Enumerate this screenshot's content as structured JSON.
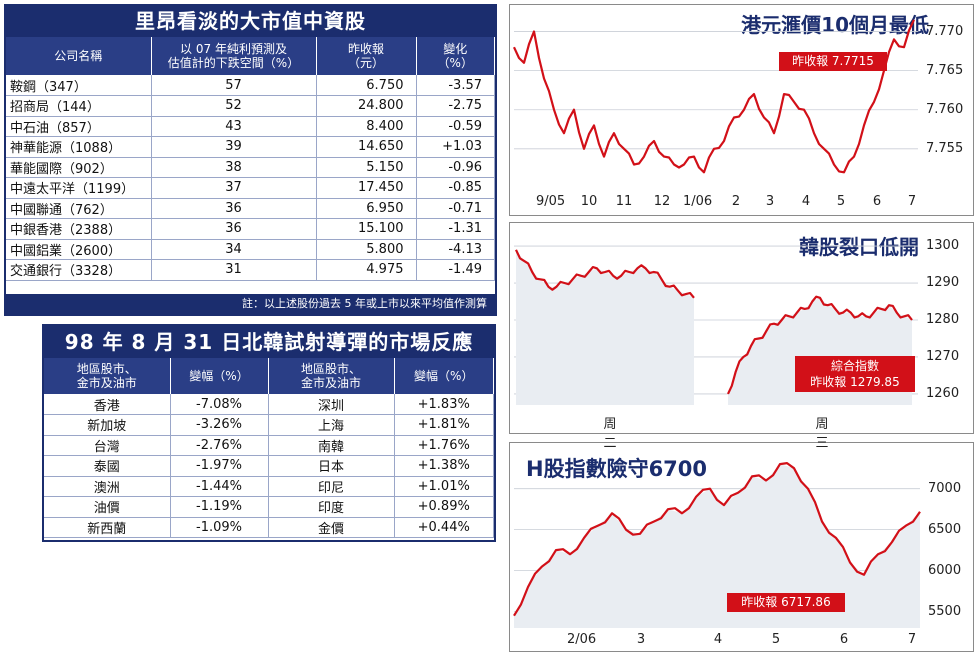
{
  "table1": {
    "title": "里昂看淡的大市值中資股",
    "headers": [
      "公司名稱",
      "以 07 年純利預測及估值計的下跌空間（%）",
      "昨收報（元）",
      "變化（%）"
    ],
    "header_lines": [
      [
        "公司名稱"
      ],
      [
        "以 07 年純利預測及",
        "估值計的下跌空間（%）"
      ],
      [
        "昨收報",
        "（元）"
      ],
      [
        "變化",
        "（%）"
      ]
    ],
    "rows": [
      [
        "鞍鋼（347）",
        "57",
        "6.750",
        "-3.57"
      ],
      [
        "招商局（144）",
        "52",
        "24.800",
        "-2.75"
      ],
      [
        "中石油（857）",
        "43",
        "8.400",
        "-0.59"
      ],
      [
        "神華能源（1088）",
        "39",
        "14.650",
        "+1.03"
      ],
      [
        "華能國際（902）",
        "38",
        "5.150",
        "-0.96"
      ],
      [
        "中遠太平洋（1199）",
        "37",
        "17.450",
        "-0.85"
      ],
      [
        "中國聯通（762）",
        "36",
        "6.950",
        "-0.71"
      ],
      [
        "中銀香港（2388）",
        "36",
        "15.100",
        "-1.31"
      ],
      [
        "中國鋁業（2600）",
        "34",
        "5.800",
        "-4.13"
      ],
      [
        "交通銀行（3328）",
        "31",
        "4.975",
        "-1.49"
      ]
    ],
    "note": "註：以上述股份過去 5 年或上市以來平均值作測算"
  },
  "table2": {
    "title": "98 年 8 月 31 日北韓試射導彈的市場反應",
    "header_lines": [
      [
        "地區股市、",
        "金市及油市"
      ],
      [
        "變幅（%）"
      ],
      [
        "地區股市、",
        "金市及油市"
      ],
      [
        "變幅（%）"
      ]
    ],
    "rows": [
      [
        "香港",
        "-7.08%",
        "深圳",
        "+1.83%"
      ],
      [
        "新加坡",
        "-3.26%",
        "上海",
        "+1.81%"
      ],
      [
        "台灣",
        "-2.76%",
        "南韓",
        "+1.76%"
      ],
      [
        "泰國",
        "-1.97%",
        "日本",
        "+1.38%"
      ],
      [
        "澳洲",
        "-1.44%",
        "印尼",
        "+1.01%"
      ],
      [
        "油價",
        "-1.19%",
        "印度",
        "+0.89%"
      ],
      [
        "新西蘭",
        "-1.09%",
        "金價",
        "+0.44%"
      ]
    ]
  },
  "colors": {
    "navy": "#1b2d6e",
    "line": "#d21018",
    "fill": "#e9edf2"
  },
  "chart_data": [
    {
      "type": "line",
      "title": "港元滙價10個月最低",
      "annotation": "昨收報 7.7715",
      "x_ticks": [
        "9/05",
        "10",
        "11",
        "12",
        "1/06",
        "2",
        "3",
        "4",
        "5",
        "6",
        "7"
      ],
      "y_ticks": [
        "7.770",
        "7.765",
        "7.760",
        "7.755"
      ],
      "ylim": [
        7.7505,
        7.7725
      ],
      "series": [
        {
          "values": [
            7.768,
            7.766,
            7.77,
            7.764,
            7.76,
            7.757,
            7.76,
            7.755,
            7.758,
            7.754,
            7.757,
            7.755,
            7.753,
            7.754,
            7.756,
            7.754,
            7.753,
            7.753,
            7.754,
            7.752,
            7.755,
            7.756,
            7.759,
            7.76,
            7.762,
            7.759,
            7.757,
            7.762,
            7.761,
            7.76,
            7.757,
            7.755,
            7.753,
            7.752,
            7.754,
            7.758,
            7.761,
            7.765,
            7.769,
            7.768,
            7.7715
          ]
        }
      ]
    },
    {
      "type": "line",
      "title": "韓股裂口低開",
      "annotation": "綜合指數 昨收報 1279.85",
      "x_ticks": [
        "周 二",
        "周 三"
      ],
      "y_ticks": [
        "1300",
        "1290",
        "1280",
        "1270",
        "1260"
      ],
      "ylim": [
        1257,
        1303
      ],
      "series": [
        {
          "name": "周二",
          "values": [
            1299,
            1296,
            1293,
            1291,
            1289,
            1289,
            1290,
            1291,
            1292,
            1293,
            1294,
            1293,
            1292,
            1292,
            1293,
            1294,
            1294,
            1293,
            1291,
            1289,
            1288,
            1287,
            1286
          ]
        },
        {
          "name": "周三",
          "values": [
            1260,
            1266,
            1270,
            1273,
            1275,
            1277,
            1279,
            1280,
            1281,
            1282,
            1283,
            1285,
            1286,
            1284,
            1283,
            1282,
            1282,
            1281,
            1281,
            1282,
            1283,
            1284,
            1282,
            1281,
            1280
          ]
        }
      ]
    },
    {
      "type": "line",
      "title": "H股指數險守6700",
      "annotation": "昨收報 6717.86",
      "x_ticks": [
        "2/06",
        "3",
        "4",
        "5",
        "6",
        "7"
      ],
      "y_ticks": [
        "7000",
        "6500",
        "6000",
        "5500"
      ],
      "ylim": [
        5300,
        7350
      ],
      "series": [
        {
          "values": [
            5450,
            5800,
            6050,
            6250,
            6200,
            6400,
            6550,
            6700,
            6500,
            6450,
            6600,
            6750,
            6700,
            6900,
            7000,
            6800,
            6950,
            7150,
            7100,
            7300,
            7250,
            7000,
            6600,
            6400,
            6100,
            5950,
            6200,
            6350,
            6550,
            6718
          ]
        }
      ]
    }
  ]
}
